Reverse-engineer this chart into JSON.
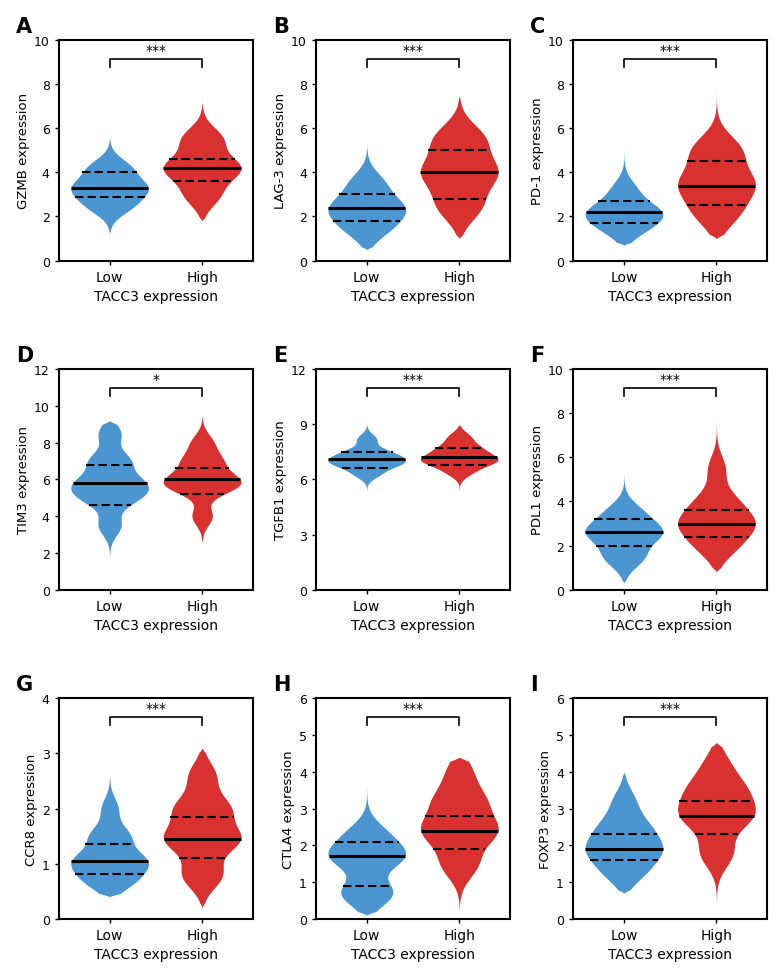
{
  "panels": [
    {
      "label": "A",
      "ylabel": "GZMB expression",
      "ylim": [
        0,
        10
      ],
      "yticks": [
        0,
        2,
        4,
        6,
        8,
        10
      ],
      "sig": "***",
      "low": {
        "median": 3.3,
        "q1": 2.9,
        "q3": 4.0,
        "min": 1.2,
        "max": 5.6,
        "kde_centers": [
          2.5,
          3.3,
          4.2
        ],
        "kde_weights": [
          0.3,
          0.5,
          0.3
        ],
        "kde_bw": 0.45
      },
      "high": {
        "median": 4.2,
        "q1": 3.6,
        "q3": 4.6,
        "min": 1.8,
        "max": 7.2,
        "kde_centers": [
          3.0,
          4.2,
          5.5
        ],
        "kde_weights": [
          0.25,
          0.55,
          0.3
        ],
        "kde_bw": 0.55
      }
    },
    {
      "label": "B",
      "ylabel": "LAG-3 expression",
      "ylim": [
        0,
        10
      ],
      "yticks": [
        0,
        2,
        4,
        6,
        8,
        10
      ],
      "sig": "***",
      "low": {
        "median": 2.4,
        "q1": 1.8,
        "q3": 3.0,
        "min": 0.5,
        "max": 5.2,
        "kde_centers": [
          1.5,
          2.4,
          3.5
        ],
        "kde_weights": [
          0.3,
          0.5,
          0.25
        ],
        "kde_bw": 0.55
      },
      "high": {
        "median": 4.0,
        "q1": 2.8,
        "q3": 5.0,
        "min": 1.0,
        "max": 7.5,
        "kde_centers": [
          2.5,
          4.0,
          5.5
        ],
        "kde_weights": [
          0.3,
          0.5,
          0.35
        ],
        "kde_bw": 0.7
      }
    },
    {
      "label": "C",
      "ylabel": "PD-1 expression",
      "ylim": [
        0,
        10
      ],
      "yticks": [
        0,
        2,
        4,
        6,
        8,
        10
      ],
      "sig": "***",
      "low": {
        "median": 2.2,
        "q1": 1.7,
        "q3": 2.7,
        "min": 0.7,
        "max": 5.3,
        "kde_centers": [
          1.5,
          2.2,
          3.2
        ],
        "kde_weights": [
          0.3,
          0.55,
          0.2
        ],
        "kde_bw": 0.5
      },
      "high": {
        "median": 3.4,
        "q1": 2.5,
        "q3": 4.5,
        "min": 1.0,
        "max": 7.8,
        "kde_centers": [
          2.2,
          3.5,
          5.0
        ],
        "kde_weights": [
          0.3,
          0.5,
          0.35
        ],
        "kde_bw": 0.7
      }
    },
    {
      "label": "D",
      "ylabel": "TIM3 expression",
      "ylim": [
        0,
        12
      ],
      "yticks": [
        0,
        2,
        4,
        6,
        8,
        10,
        12
      ],
      "sig": "*",
      "low": {
        "median": 5.8,
        "q1": 4.6,
        "q3": 6.8,
        "min": 1.8,
        "max": 9.2,
        "kde_centers": [
          3.5,
          5.0,
          5.8,
          7.0,
          8.5
        ],
        "kde_weights": [
          0.2,
          0.4,
          0.5,
          0.35,
          0.2
        ],
        "kde_bw": 0.55
      },
      "high": {
        "median": 6.0,
        "q1": 5.2,
        "q3": 6.6,
        "min": 2.5,
        "max": 9.5,
        "kde_centers": [
          4.0,
          5.5,
          6.0,
          7.0,
          8.0
        ],
        "kde_weights": [
          0.2,
          0.35,
          0.5,
          0.35,
          0.2
        ],
        "kde_bw": 0.5
      }
    },
    {
      "label": "E",
      "ylabel": "TGFB1 expression",
      "ylim": [
        0,
        12
      ],
      "yticks": [
        0,
        3,
        6,
        9,
        12
      ],
      "sig": "***",
      "low": {
        "median": 7.1,
        "q1": 6.6,
        "q3": 7.5,
        "min": 5.2,
        "max": 9.0,
        "kde_centers": [
          6.3,
          6.8,
          7.1,
          7.5,
          8.2
        ],
        "kde_weights": [
          0.35,
          0.6,
          0.7,
          0.55,
          0.3
        ],
        "kde_bw": 0.28
      },
      "high": {
        "median": 7.2,
        "q1": 6.8,
        "q3": 7.7,
        "min": 4.8,
        "max": 9.0,
        "kde_centers": [
          6.4,
          6.9,
          7.2,
          7.7,
          8.3
        ],
        "kde_weights": [
          0.3,
          0.55,
          0.65,
          0.5,
          0.3
        ],
        "kde_bw": 0.3
      }
    },
    {
      "label": "F",
      "ylabel": "PDL1 expression",
      "ylim": [
        0,
        10
      ],
      "yticks": [
        0,
        2,
        4,
        6,
        8,
        10
      ],
      "sig": "***",
      "low": {
        "median": 2.6,
        "q1": 2.0,
        "q3": 3.2,
        "min": 0.3,
        "max": 5.3,
        "kde_centers": [
          1.5,
          2.6,
          3.5
        ],
        "kde_weights": [
          0.3,
          0.55,
          0.25
        ],
        "kde_bw": 0.5
      },
      "high": {
        "median": 3.0,
        "q1": 2.4,
        "q3": 3.6,
        "min": 0.8,
        "max": 8.3,
        "kde_centers": [
          2.0,
          3.0,
          4.0,
          5.5
        ],
        "kde_weights": [
          0.3,
          0.55,
          0.3,
          0.15
        ],
        "kde_bw": 0.6
      }
    },
    {
      "label": "G",
      "ylabel": "CCR8 expression",
      "ylim": [
        0,
        4
      ],
      "yticks": [
        0,
        1,
        2,
        3,
        4
      ],
      "sig": "***",
      "low": {
        "median": 1.05,
        "q1": 0.82,
        "q3": 1.35,
        "min": 0.4,
        "max": 2.6,
        "kde_centers": [
          0.7,
          1.05,
          1.5,
          2.0
        ],
        "kde_weights": [
          0.4,
          0.6,
          0.35,
          0.15
        ],
        "kde_bw": 0.2
      },
      "high": {
        "median": 1.45,
        "q1": 1.1,
        "q3": 1.85,
        "min": 0.2,
        "max": 3.1,
        "kde_centers": [
          0.8,
          1.45,
          2.0,
          2.6
        ],
        "kde_weights": [
          0.3,
          0.55,
          0.4,
          0.2
        ],
        "kde_bw": 0.25
      }
    },
    {
      "label": "H",
      "ylabel": "CTLA4 expression",
      "ylim": [
        0,
        6
      ],
      "yticks": [
        0,
        1,
        2,
        3,
        4,
        5,
        6
      ],
      "sig": "***",
      "low": {
        "median": 1.7,
        "q1": 0.9,
        "q3": 2.1,
        "min": 0.1,
        "max": 3.6,
        "kde_centers": [
          0.7,
          1.7,
          2.3
        ],
        "kde_weights": [
          0.45,
          0.6,
          0.3
        ],
        "kde_bw": 0.35
      },
      "high": {
        "median": 2.4,
        "q1": 1.9,
        "q3": 2.8,
        "min": 0.2,
        "max": 4.4,
        "kde_centers": [
          1.5,
          2.4,
          3.2,
          4.0
        ],
        "kde_weights": [
          0.3,
          0.6,
          0.4,
          0.2
        ],
        "kde_bw": 0.4
      }
    },
    {
      "label": "I",
      "ylabel": "FOXP3 expression",
      "ylim": [
        0,
        6
      ],
      "yticks": [
        0,
        1,
        2,
        3,
        4,
        5,
        6
      ],
      "sig": "***",
      "low": {
        "median": 1.9,
        "q1": 1.6,
        "q3": 2.3,
        "min": 0.7,
        "max": 4.0,
        "kde_centers": [
          1.3,
          1.9,
          2.5,
          3.2
        ],
        "kde_weights": [
          0.35,
          0.6,
          0.4,
          0.2
        ],
        "kde_bw": 0.35
      },
      "high": {
        "median": 2.8,
        "q1": 2.3,
        "q3": 3.2,
        "min": 0.4,
        "max": 4.8,
        "kde_centers": [
          1.8,
          2.8,
          3.5,
          4.2
        ],
        "kde_weights": [
          0.3,
          0.6,
          0.45,
          0.2
        ],
        "kde_bw": 0.4
      }
    }
  ],
  "color_low": "#4B96D1",
  "color_high": "#D93030",
  "xlabel": "TACC3 expression",
  "xtick_labels": [
    "Low",
    "High"
  ]
}
